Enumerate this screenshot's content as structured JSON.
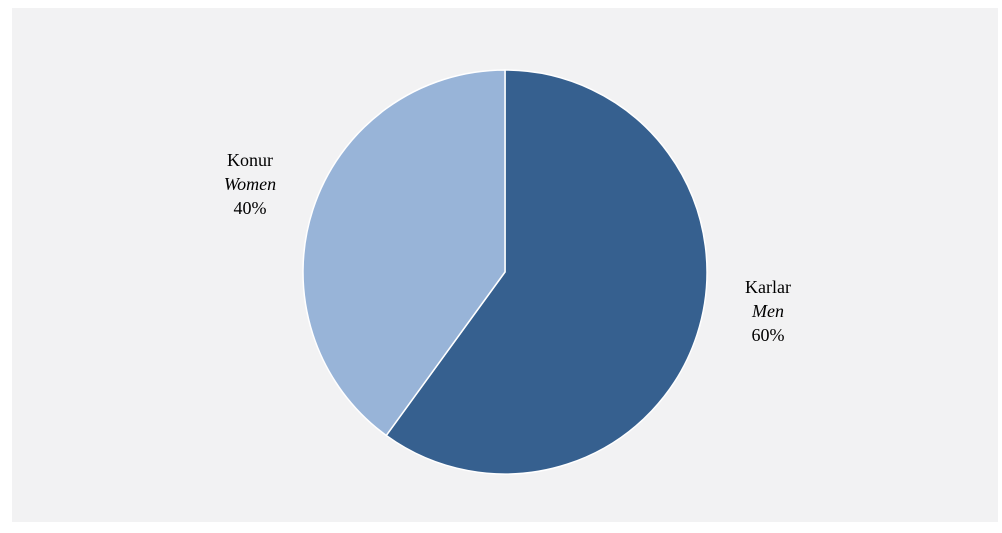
{
  "chart_data": {
    "type": "pie",
    "title": "",
    "start_angle_deg": 0,
    "direction": "clockwise",
    "slices": [
      {
        "label": "Karlar",
        "label_en": "Men",
        "value": 60,
        "value_label": "60%",
        "color": "#36608f"
      },
      {
        "label": "Konur",
        "label_en": "Women",
        "value": 40,
        "value_label": "40%",
        "color": "#98b4d8"
      }
    ],
    "legend": "none",
    "slice_border_color": "#ffffff"
  }
}
